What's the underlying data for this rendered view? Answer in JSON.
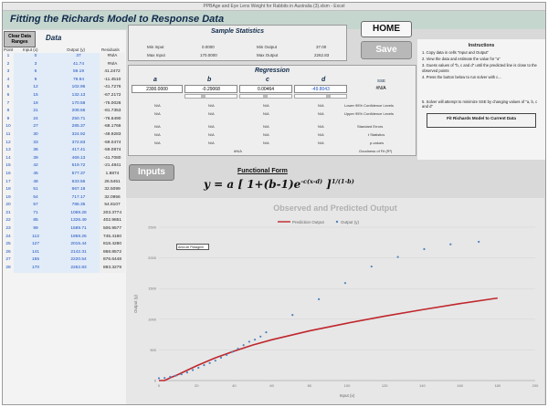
{
  "window_title": "PPBAge and Eye Lens Weight for Rabbits in Australia (3).xlsm - Excel",
  "header_title": "Fitting the Richards Model to Response Data",
  "left_panel": {
    "clear_label": "Clear Data Ranges",
    "data_label": "Data",
    "headers": {
      "point": "Point",
      "input": "Input (x)",
      "output": "Output (y)",
      "residual": "Residuals"
    },
    "rows": [
      {
        "p": "1",
        "x": "0",
        "y": "37",
        "r": "#N/A"
      },
      {
        "p": "2",
        "x": "3",
        "y": "41.74",
        "r": "#N/A"
      },
      {
        "p": "3",
        "x": "6",
        "y": "59.19",
        "r": "41.2472"
      },
      {
        "p": "4",
        "x": "9",
        "y": "79.94",
        "r": "-11.4510"
      },
      {
        "p": "5",
        "x": "12",
        "y": "102.96",
        "r": "-41.7276"
      },
      {
        "p": "6",
        "x": "15",
        "y": "132.13",
        "r": "-67.2172"
      },
      {
        "p": "7",
        "x": "18",
        "y": "170.58",
        "r": "-75.0026"
      },
      {
        "p": "8",
        "x": "21",
        "y": "208.56",
        "r": "-81.7353"
      },
      {
        "p": "9",
        "x": "24",
        "y": "250.71",
        "r": "-76.6490"
      },
      {
        "p": "10",
        "x": "27",
        "y": "285.37",
        "r": "-68.1766"
      },
      {
        "p": "11",
        "x": "30",
        "y": "324.92",
        "r": "-49.9283"
      },
      {
        "p": "12",
        "x": "33",
        "y": "372.83",
        "r": "-69.0474"
      },
      {
        "p": "13",
        "x": "36",
        "y": "417.41",
        "r": "-59.0874"
      },
      {
        "p": "14",
        "x": "39",
        "y": "469.13",
        "r": "-41.7080"
      },
      {
        "p": "15",
        "x": "42",
        "y": "519.72",
        "r": "-21.4841"
      },
      {
        "p": "16",
        "x": "45",
        "y": "577.37",
        "r": "1.8874"
      },
      {
        "p": "17",
        "x": "48",
        "y": "633.56",
        "r": "26.5451"
      },
      {
        "p": "18",
        "x": "51",
        "y": "667.18",
        "r": "32.5099"
      },
      {
        "p": "19",
        "x": "54",
        "y": "717.17",
        "r": "32.0956"
      },
      {
        "p": "20",
        "x": "57",
        "y": "786.35",
        "r": "54.8107"
      },
      {
        "p": "21",
        "x": "71",
        "y": "1069.28",
        "r": "203.3774"
      },
      {
        "p": "22",
        "x": "85",
        "y": "1326.49",
        "r": "402.9851"
      },
      {
        "p": "23",
        "x": "99",
        "y": "1589.71",
        "r": "506.9577"
      },
      {
        "p": "24",
        "x": "113",
        "y": "1859.26",
        "r": "745.4160"
      },
      {
        "p": "25",
        "x": "127",
        "y": "2015.44",
        "r": "818.4280"
      },
      {
        "p": "26",
        "x": "141",
        "y": "2142.31",
        "r": "868.8572"
      },
      {
        "p": "27",
        "x": "155",
        "y": "2220.54",
        "r": "876.6448"
      },
      {
        "p": "28",
        "x": "170",
        "y": "2262.83",
        "r": "893.3279"
      }
    ]
  },
  "sample_stats": {
    "title": "Sample Statistics",
    "min_input_label": "Min Input",
    "min_input": "0.0000",
    "max_input_label": "Max Input",
    "max_input": "170.0000",
    "min_output_label": "Min Output",
    "min_output": "37.00",
    "max_output_label": "Max Output",
    "max_output": "2262.83"
  },
  "buttons": {
    "home": "HOME",
    "save": "Save",
    "inputs": "Inputs",
    "fit": "Fit Richards Model to Current Data"
  },
  "instructions": {
    "title": "Instructions",
    "steps": [
      "1. Copy data in cells \"Input and Output\"",
      "2. View the data and estimate the value for \"a\"",
      "3. Guess values of \"b, c and d\" until the predicted line is close to the observed points",
      "4. Press the button below to run solver with c...",
      "5. Solver will attempt to minimize SSE by changing values of \"a, b, c and d\""
    ]
  },
  "regression": {
    "title": "Regression",
    "letters": [
      "a",
      "b",
      "c",
      "d"
    ],
    "params": [
      "2300.0000",
      "-0.29068",
      "0.00464",
      "-49.8043"
    ],
    "sse_label": "SSE",
    "sse_value": "#N/A",
    "lower_label": "Lower 95% Confidence Levels",
    "upper_label": "Upper 95% Confidence Levels",
    "se_label": "Standard Errors",
    "t_label": "t Statistics",
    "p_label": "p-values",
    "gof_label": "Goodness of Fit (R²)",
    "na": "N/A",
    "gof_value": "#N/A"
  },
  "functional_form": {
    "title": "Functional Form",
    "lhs": "y = a [ 1+(b-1)e",
    "exp1": "-c(x-d)",
    "mid": " ]",
    "exp2": "1/(1-b)"
  },
  "chart_data": {
    "type": "scatter",
    "title": "Observed and Predicted Output",
    "xlabel": "Input (x)",
    "ylabel": "Output (y)",
    "xlim": [
      0,
      200
    ],
    "ylim": [
      0,
      2500
    ],
    "xticks": [
      0,
      20,
      40,
      60,
      80,
      100,
      120,
      140,
      160,
      180,
      200
    ],
    "yticks": [
      0,
      500,
      1000,
      1500,
      2000,
      2500
    ],
    "tooltip": "Area de Plotagem",
    "series": [
      {
        "name": "Prediction Output",
        "color": "#c0272d",
        "line": true,
        "x": [
          0,
          3,
          6,
          10,
          20,
          30,
          40,
          50,
          60,
          80,
          100,
          120,
          140,
          160,
          180
        ],
        "y": [
          0,
          0,
          45,
          95,
          240,
          370,
          480,
          580,
          665,
          810,
          935,
          1050,
          1155,
          1255,
          1345
        ]
      },
      {
        "name": "Output (y)",
        "color": "#4f81bd",
        "line": false,
        "x": [
          0,
          3,
          6,
          9,
          12,
          15,
          18,
          21,
          24,
          27,
          30,
          33,
          36,
          39,
          42,
          45,
          48,
          51,
          54,
          57,
          71,
          85,
          99,
          113,
          127,
          141,
          155,
          170
        ],
        "y": [
          37,
          41.74,
          59.19,
          79.94,
          102.96,
          132.13,
          170.58,
          208.56,
          250.71,
          285.37,
          324.92,
          372.83,
          417.41,
          469.13,
          519.72,
          577.37,
          633.56,
          667.18,
          717.17,
          786.35,
          1069.28,
          1326.49,
          1589.71,
          1859.26,
          2015.44,
          2142.31,
          2220.54,
          2262.83
        ]
      }
    ]
  }
}
